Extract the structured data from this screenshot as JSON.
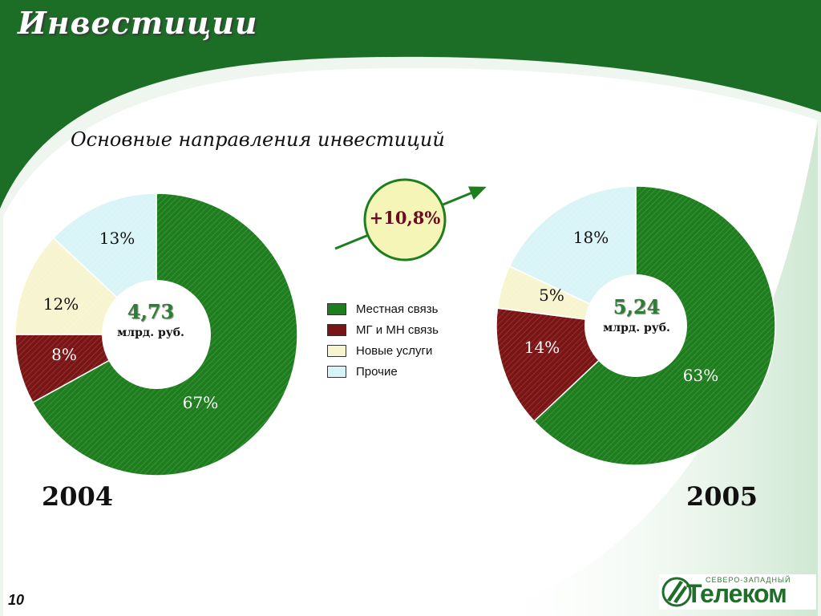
{
  "page": {
    "title": "Инвестиции",
    "subtitle": "Основные направления инвестиций",
    "page_number": "10",
    "growth_badge": "+10,8%",
    "logo": {
      "small_text": "СЕВЕРО-ЗАПАДНЫЙ",
      "main_text": "Телеком"
    }
  },
  "legend": [
    {
      "label": "Местная связь",
      "color": "#1e7e1e"
    },
    {
      "label": "МГ и МН связь",
      "color": "#7b1515"
    },
    {
      "label": "Новые услуги",
      "color": "#f7f5cf"
    },
    {
      "label": "Прочие",
      "color": "#d9f4f7"
    }
  ],
  "chart_data": [
    {
      "type": "pie",
      "year": "2004",
      "center_value": "4,73",
      "center_unit": "млрд. руб.",
      "categories": [
        "Местная связь",
        "МГ и МН связь",
        "Новые услуги",
        "Прочие"
      ],
      "values": [
        67,
        8,
        12,
        13
      ],
      "labels": [
        "67%",
        "8%",
        "12%",
        "13%"
      ],
      "colors": [
        "#1e7e1e",
        "#7b1515",
        "#f7f5cf",
        "#d9f4f7"
      ]
    },
    {
      "type": "pie",
      "year": "2005",
      "center_value": "5,24",
      "center_unit": "млрд. руб.",
      "categories": [
        "Местная связь",
        "МГ и МН связь",
        "Новые услуги",
        "Прочие"
      ],
      "values": [
        63,
        14,
        5,
        18
      ],
      "labels": [
        "63%",
        "14%",
        "5%",
        "18%"
      ],
      "colors": [
        "#1e7e1e",
        "#7b1515",
        "#f7f5cf",
        "#d9f4f7"
      ]
    }
  ]
}
